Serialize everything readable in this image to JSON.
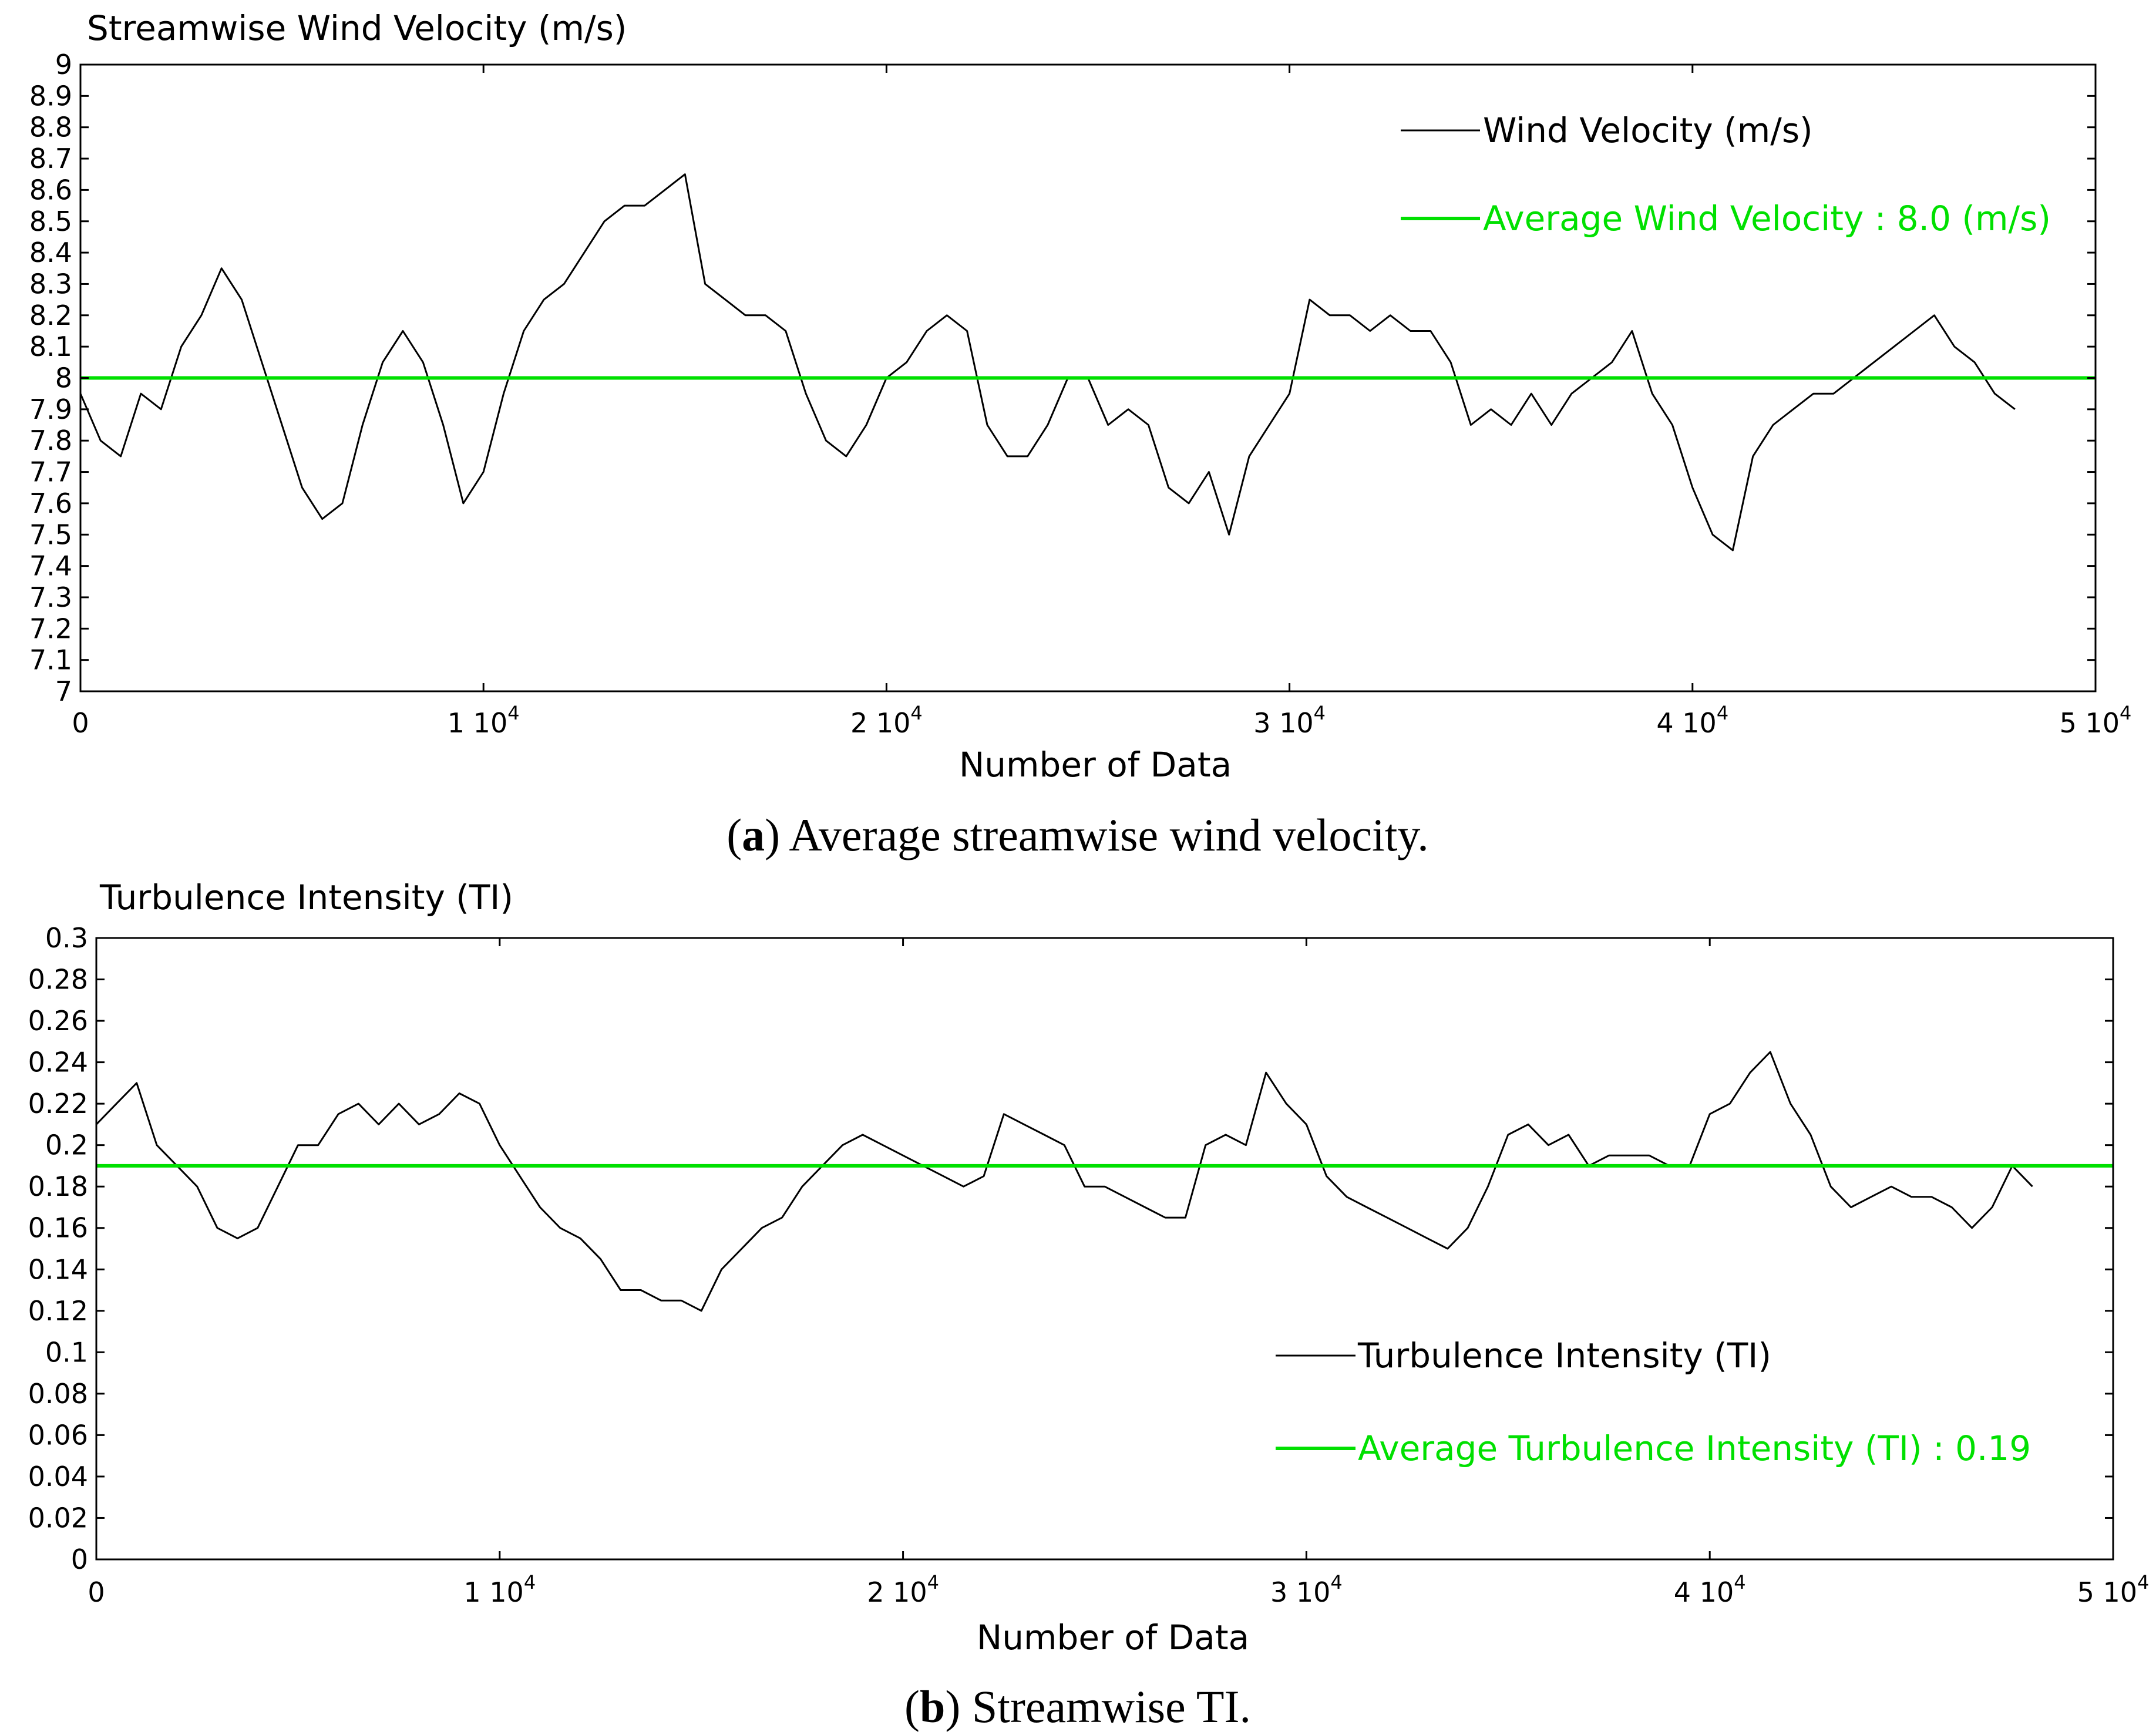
{
  "chart_data": [
    {
      "panel": "a",
      "type": "line",
      "title": "Streamwise Wind Velocity (m/s)",
      "xlabel": "Number of Data",
      "ylabel": "",
      "xlim": [
        0,
        50000
      ],
      "ylim": [
        7,
        9
      ],
      "x_ticks": [
        0,
        10000,
        20000,
        30000,
        40000,
        50000
      ],
      "x_tick_labels": [
        {
          "base": "0",
          "exp": ""
        },
        {
          "base": "1 10",
          "exp": "4"
        },
        {
          "base": "2 10",
          "exp": "4"
        },
        {
          "base": "3 10",
          "exp": "4"
        },
        {
          "base": "4 10",
          "exp": "4"
        },
        {
          "base": "5 10",
          "exp": "4"
        }
      ],
      "y_ticks": [
        7,
        7.1,
        7.2,
        7.3,
        7.4,
        7.5,
        7.6,
        7.7,
        7.8,
        7.9,
        8,
        8.1,
        8.2,
        8.3,
        8.4,
        8.5,
        8.6,
        8.7,
        8.8,
        8.9,
        9
      ],
      "y_tick_labels": [
        "7",
        "7.1",
        "7.2",
        "7.3",
        "7.4",
        "7.5",
        "7.6",
        "7.7",
        "7.8",
        "7.9",
        "8",
        "8.1",
        "8.2",
        "8.3",
        "8.4",
        "8.5",
        "8.6",
        "8.7",
        "8.8",
        "8.9",
        "9"
      ],
      "legend_position": "top-right",
      "series": [
        {
          "name": "Wind Velocity (m/s)",
          "color": "#000000",
          "x": [
            0,
            500,
            1000,
            1500,
            2000,
            2500,
            3000,
            3500,
            4000,
            4500,
            5000,
            5500,
            6000,
            6500,
            7000,
            7500,
            8000,
            8500,
            9000,
            9500,
            10000,
            10500,
            11000,
            11500,
            12000,
            12500,
            13000,
            13500,
            14000,
            14500,
            15000,
            15500,
            16000,
            16500,
            17000,
            17500,
            18000,
            18500,
            19000,
            19500,
            20000,
            20500,
            21000,
            21500,
            22000,
            22500,
            23000,
            23500,
            24000,
            24500,
            25000,
            25500,
            26000,
            26500,
            27000,
            27500,
            28000,
            28500,
            29000,
            29500,
            30000,
            30500,
            31000,
            31500,
            32000,
            32500,
            33000,
            33500,
            34000,
            34500,
            35000,
            35500,
            36000,
            36500,
            37000,
            37500,
            38000,
            38500,
            39000,
            39500,
            40000,
            40500,
            41000,
            41500,
            42000,
            42500,
            43000,
            43500,
            44000,
            44500,
            45000,
            45500,
            46000,
            46500,
            47000,
            47500,
            48000
          ],
          "y": [
            7.95,
            7.8,
            7.75,
            7.95,
            7.9,
            8.1,
            8.2,
            8.35,
            8.25,
            8.05,
            7.85,
            7.65,
            7.55,
            7.6,
            7.85,
            8.05,
            8.15,
            8.05,
            7.85,
            7.6,
            7.7,
            7.95,
            8.15,
            8.25,
            8.3,
            8.4,
            8.5,
            8.55,
            8.55,
            8.6,
            8.65,
            8.3,
            8.25,
            8.2,
            8.2,
            8.15,
            7.95,
            7.8,
            7.75,
            7.85,
            8.0,
            8.05,
            8.15,
            8.2,
            8.15,
            7.85,
            7.75,
            7.75,
            7.85,
            8.0,
            8.0,
            7.85,
            7.9,
            7.85,
            7.65,
            7.6,
            7.7,
            7.5,
            7.75,
            7.85,
            7.95,
            8.25,
            8.2,
            8.2,
            8.15,
            8.2,
            8.15,
            8.15,
            8.05,
            7.85,
            7.9,
            7.85,
            7.95,
            7.85,
            7.95,
            8.0,
            8.05,
            8.15,
            7.95,
            7.85,
            7.65,
            7.5,
            7.45,
            7.75,
            7.85,
            7.9,
            7.95,
            7.95,
            8.0,
            8.05,
            8.1,
            8.15,
            8.2,
            8.1,
            8.05,
            7.95,
            7.9
          ]
        },
        {
          "name": "Average Wind Velocity : 8.0 (m/s)",
          "color": "#00e000",
          "x": [
            0,
            50000
          ],
          "y": [
            8.0,
            8.0
          ]
        }
      ]
    },
    {
      "panel": "b",
      "type": "line",
      "title": "Turbulence Intensity (TI)",
      "xlabel": "Number of Data",
      "ylabel": "",
      "xlim": [
        0,
        50000
      ],
      "ylim": [
        0,
        0.3
      ],
      "x_ticks": [
        0,
        10000,
        20000,
        30000,
        40000,
        50000
      ],
      "x_tick_labels": [
        {
          "base": "0",
          "exp": ""
        },
        {
          "base": "1 10",
          "exp": "4"
        },
        {
          "base": "2 10",
          "exp": "4"
        },
        {
          "base": "3 10",
          "exp": "4"
        },
        {
          "base": "4 10",
          "exp": "4"
        },
        {
          "base": "5 10",
          "exp": "4"
        }
      ],
      "y_ticks": [
        0,
        0.02,
        0.04,
        0.06,
        0.08,
        0.1,
        0.12,
        0.14,
        0.16,
        0.18,
        0.2,
        0.22,
        0.24,
        0.26,
        0.28,
        0.3
      ],
      "y_tick_labels": [
        "0",
        "0.02",
        "0.04",
        "0.06",
        "0.08",
        "0.1",
        "0.12",
        "0.14",
        "0.16",
        "0.18",
        "0.2",
        "0.22",
        "0.24",
        "0.26",
        "0.28",
        "0.3"
      ],
      "legend_position": "bottom-right",
      "series": [
        {
          "name": "Turbulence Intensity (TI)",
          "color": "#000000",
          "x": [
            0,
            500,
            1000,
            1500,
            2000,
            2500,
            3000,
            3500,
            4000,
            4500,
            5000,
            5500,
            6000,
            6500,
            7000,
            7500,
            8000,
            8500,
            9000,
            9500,
            10000,
            10500,
            11000,
            11500,
            12000,
            12500,
            13000,
            13500,
            14000,
            14500,
            15000,
            15500,
            16000,
            16500,
            17000,
            17500,
            18000,
            18500,
            19000,
            19500,
            20000,
            20500,
            21000,
            21500,
            22000,
            22500,
            23000,
            23500,
            24000,
            24500,
            25000,
            25500,
            26000,
            26500,
            27000,
            27500,
            28000,
            28500,
            29000,
            29500,
            30000,
            30500,
            31000,
            31500,
            32000,
            32500,
            33000,
            33500,
            34000,
            34500,
            35000,
            35500,
            36000,
            36500,
            37000,
            37500,
            38000,
            38500,
            39000,
            39500,
            40000,
            40500,
            41000,
            41500,
            42000,
            42500,
            43000,
            43500,
            44000,
            44500,
            45000,
            45500,
            46000,
            46500,
            47000,
            47500,
            48000
          ],
          "y": [
            0.21,
            0.22,
            0.23,
            0.2,
            0.19,
            0.18,
            0.16,
            0.155,
            0.16,
            0.18,
            0.2,
            0.2,
            0.215,
            0.22,
            0.21,
            0.22,
            0.21,
            0.215,
            0.225,
            0.22,
            0.2,
            0.185,
            0.17,
            0.16,
            0.155,
            0.145,
            0.13,
            0.13,
            0.125,
            0.125,
            0.12,
            0.14,
            0.15,
            0.16,
            0.165,
            0.18,
            0.19,
            0.2,
            0.205,
            0.2,
            0.195,
            0.19,
            0.185,
            0.18,
            0.185,
            0.215,
            0.21,
            0.205,
            0.2,
            0.18,
            0.18,
            0.175,
            0.17,
            0.165,
            0.165,
            0.2,
            0.205,
            0.2,
            0.235,
            0.22,
            0.21,
            0.185,
            0.175,
            0.17,
            0.165,
            0.16,
            0.155,
            0.15,
            0.16,
            0.18,
            0.205,
            0.21,
            0.2,
            0.205,
            0.19,
            0.195,
            0.195,
            0.195,
            0.19,
            0.19,
            0.215,
            0.22,
            0.235,
            0.245,
            0.22,
            0.205,
            0.18,
            0.17,
            0.175,
            0.18,
            0.175,
            0.175,
            0.17,
            0.16,
            0.17,
            0.19,
            0.18
          ]
        },
        {
          "name": "Average Turbulence Intensity (TI) : 0.19",
          "color": "#00e000",
          "x": [
            0,
            50000
          ],
          "y": [
            0.19,
            0.19
          ]
        }
      ]
    }
  ],
  "captions": {
    "a": {
      "letter": "a",
      "text": " Average streamwise wind velocity."
    },
    "b": {
      "letter": "b",
      "text": " Streamwise TI."
    }
  }
}
